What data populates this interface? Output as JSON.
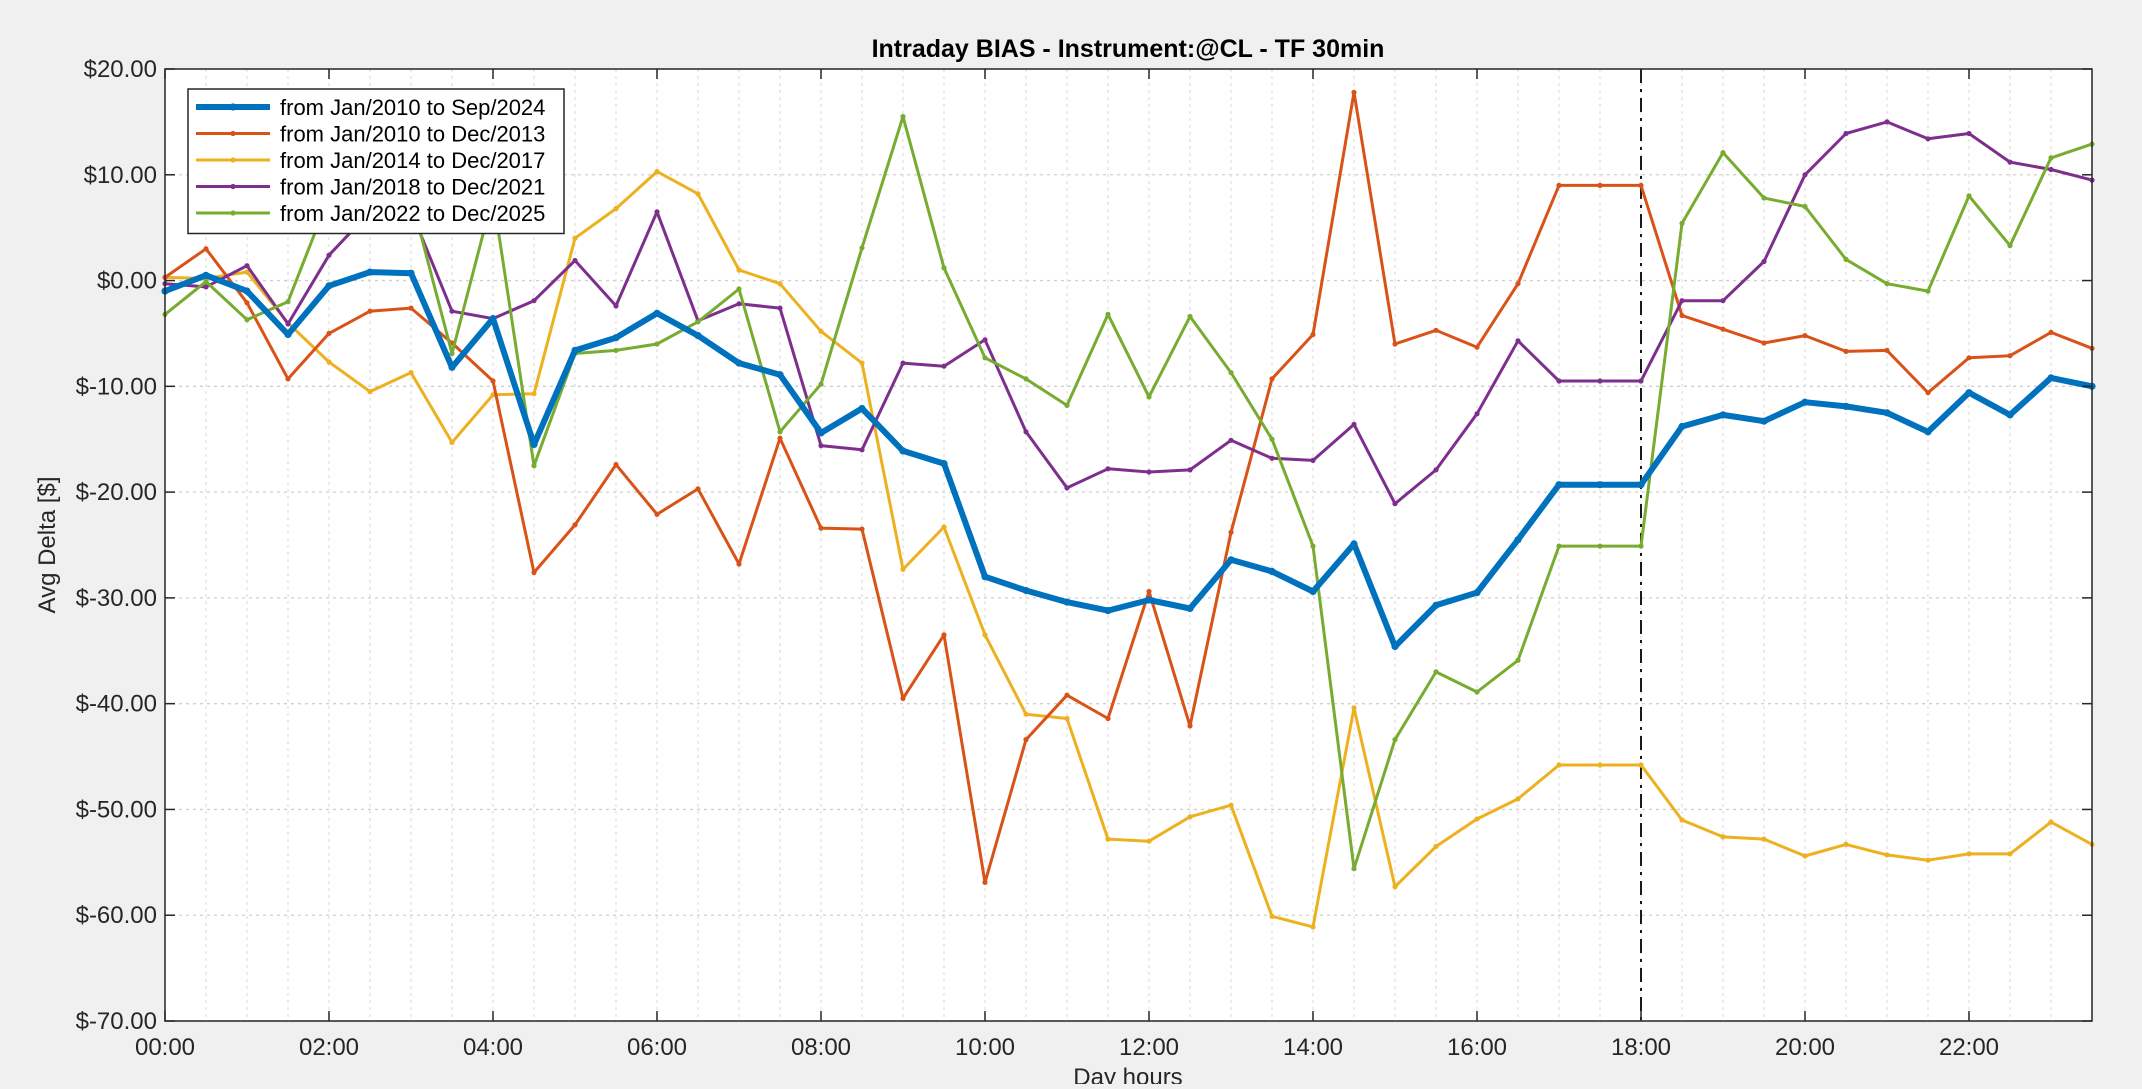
{
  "chart_data": {
    "type": "line",
    "title": "Intraday BIAS - Instrument:@CL - TF 30min",
    "xlabel": "Day hours",
    "ylabel": "Avg Delta [$]",
    "ylim": [
      -70,
      20
    ],
    "yticks": [
      -70,
      -60,
      -50,
      -40,
      -30,
      -20,
      -10,
      0,
      10,
      20
    ],
    "ytick_labels": [
      "$-70.00",
      "$-60.00",
      "$-50.00",
      "$-40.00",
      "$-30.00",
      "$-20.00",
      "$-10.00",
      "$0.00",
      "$10.00",
      "$20.00"
    ],
    "xlim": [
      "00:00",
      "23:30"
    ],
    "xtick_labels": [
      "00:00",
      "02:00",
      "04:00",
      "06:00",
      "08:00",
      "10:00",
      "12:00",
      "14:00",
      "16:00",
      "18:00",
      "20:00",
      "22:00"
    ],
    "grid": true,
    "legend_position": "top-left",
    "vline": {
      "x": "18:00",
      "style": "dash-dot"
    },
    "x": [
      "00:00",
      "00:30",
      "01:00",
      "01:30",
      "02:00",
      "02:30",
      "03:00",
      "03:30",
      "04:00",
      "04:30",
      "05:00",
      "05:30",
      "06:00",
      "06:30",
      "07:00",
      "07:30",
      "08:00",
      "08:30",
      "09:00",
      "09:30",
      "10:00",
      "10:30",
      "11:00",
      "11:30",
      "12:00",
      "12:30",
      "13:00",
      "13:30",
      "14:00",
      "14:30",
      "15:00",
      "15:30",
      "16:00",
      "16:30",
      "17:00",
      "17:30",
      "18:00",
      "18:30",
      "19:00",
      "19:30",
      "20:00",
      "20:30",
      "21:00",
      "21:30",
      "22:00",
      "22:30",
      "23:00",
      "23:30"
    ],
    "series": [
      {
        "name": "from Jan/2014 to Dec/2017",
        "color": "#EDB120",
        "width": "thin",
        "values": [
          0.3,
          0.2,
          0.8,
          -4.0,
          -7.7,
          -10.5,
          -8.7,
          -15.3,
          -10.8,
          -10.7,
          4.0,
          6.8,
          10.3,
          8.2,
          1.0,
          -0.3,
          -4.8,
          -7.8,
          -27.3,
          -23.3,
          -33.5,
          -41.0,
          -41.4,
          -52.8,
          -53.0,
          -50.7,
          -49.6,
          -60.1,
          -61.1,
          -40.4,
          -57.3,
          -53.5,
          -50.9,
          -49.0,
          -45.8,
          -45.8,
          -45.8,
          -51.0,
          -52.6,
          -52.8,
          -54.4,
          -53.3,
          -54.3,
          -54.8,
          -54.2,
          -54.2,
          -51.2,
          -53.3
        ]
      },
      {
        "name": "from Jan/2010 to Dec/2013",
        "color": "#D95319",
        "width": "thin",
        "values": [
          0.3,
          3.0,
          -2.1,
          -9.3,
          -5.0,
          -2.9,
          -2.6,
          -5.9,
          -9.5,
          -27.6,
          -23.1,
          -17.4,
          -22.1,
          -19.7,
          -26.8,
          -14.9,
          -23.4,
          -23.5,
          -39.5,
          -33.5,
          -56.9,
          -43.4,
          -39.2,
          -41.4,
          -29.4,
          -42.1,
          -23.8,
          -9.3,
          -5.1,
          17.8,
          -6.0,
          -4.7,
          -6.3,
          -0.3,
          9.0,
          9.0,
          9.0,
          -3.3,
          -4.6,
          -5.9,
          -5.2,
          -6.7,
          -6.6,
          -10.6,
          -7.3,
          -7.1,
          -4.9,
          -6.4
        ]
      },
      {
        "name": "from Jan/2018 to Dec/2021",
        "color": "#7E2F8E",
        "width": "thin",
        "values": [
          -0.3,
          -0.6,
          1.4,
          -4.1,
          2.4,
          6.5,
          6.6,
          -2.9,
          -3.6,
          -1.9,
          1.9,
          -2.4,
          6.5,
          -3.8,
          -2.2,
          -2.6,
          -15.6,
          -16.0,
          -7.8,
          -8.1,
          -5.6,
          -14.3,
          -19.6,
          -17.8,
          -18.1,
          -17.9,
          -15.1,
          -16.8,
          -17.0,
          -13.6,
          -21.1,
          -17.9,
          -12.6,
          -5.7,
          -9.5,
          -9.5,
          -9.5,
          -1.9,
          -1.9,
          1.8,
          10.0,
          13.9,
          15.0,
          13.4,
          13.9,
          11.2,
          10.5,
          9.5
        ]
      },
      {
        "name": "from Jan/2022 to Dec/2025",
        "color": "#77AC30",
        "width": "thin",
        "values": [
          -3.2,
          -0.1,
          -3.7,
          -2.0,
          7.9,
          8.0,
          7.9,
          -6.9,
          8.0,
          -17.5,
          -6.9,
          -6.6,
          -6.0,
          -3.9,
          -0.8,
          -14.3,
          -9.8,
          3.1,
          15.5,
          1.2,
          -7.3,
          -9.3,
          -11.8,
          -3.2,
          -11.0,
          -3.4,
          -8.7,
          -15.0,
          -25.1,
          -55.6,
          -43.4,
          -37.0,
          -38.9,
          -35.9,
          -25.1,
          -25.1,
          -25.1,
          5.4,
          12.1,
          7.8,
          7.0,
          2.0,
          -0.3,
          -1.0,
          8.0,
          3.3,
          11.6,
          12.9
        ]
      },
      {
        "name": "from Jan/2010 to Sep/2024",
        "color": "#0072BD",
        "width": "thick",
        "values": [
          -1.0,
          0.5,
          -1.0,
          -5.1,
          -0.5,
          0.8,
          0.7,
          -8.2,
          -3.6,
          -15.5,
          -6.6,
          -5.4,
          -3.1,
          -5.2,
          -7.8,
          -8.9,
          -14.4,
          -12.1,
          -16.1,
          -17.3,
          -28.0,
          -29.3,
          -30.4,
          -31.2,
          -30.2,
          -31.0,
          -26.4,
          -27.5,
          -29.4,
          -24.9,
          -34.6,
          -30.7,
          -29.5,
          -24.5,
          -19.3,
          -19.3,
          -19.3,
          -13.8,
          -12.7,
          -13.3,
          -11.5,
          -11.9,
          -12.5,
          -14.3,
          -10.6,
          -12.7,
          -9.2,
          -10.0
        ]
      }
    ],
    "legend_order": [
      "from Jan/2010 to Sep/2024",
      "from Jan/2010 to Dec/2013",
      "from Jan/2014 to Dec/2017",
      "from Jan/2018 to Dec/2021",
      "from Jan/2022 to Dec/2025"
    ]
  }
}
